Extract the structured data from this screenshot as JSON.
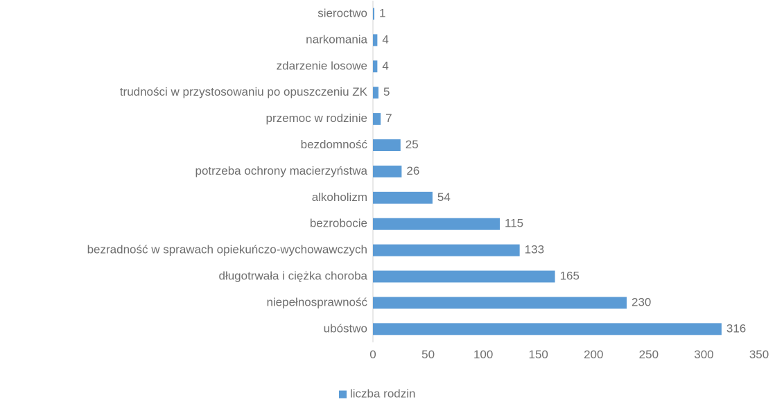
{
  "chart_data": {
    "type": "bar",
    "orientation": "horizontal",
    "categories": [
      "sieroctwo",
      "narkomania",
      "zdarzenie losowe",
      "trudności w przystosowaniu po opuszczeniu ZK",
      "przemoc w rodzinie",
      "bezdomność",
      "potrzeba ochrony macierzyństwa",
      "alkoholizm",
      "bezrobocie",
      "bezradność w sprawach opiekuńczo-wychowawczych",
      "długotrwała i ciężka choroba",
      "niepełnosprawność",
      "ubóstwo"
    ],
    "series": [
      {
        "name": "liczba rodzin",
        "color": "#5b9bd5",
        "values": [
          1,
          4,
          4,
          5,
          7,
          25,
          26,
          54,
          115,
          133,
          165,
          230,
          316
        ]
      }
    ],
    "xlim": [
      0,
      350
    ],
    "xticks": [
      0,
      50,
      100,
      150,
      200,
      250,
      300,
      350
    ],
    "grid": false,
    "legend": "bottom"
  }
}
